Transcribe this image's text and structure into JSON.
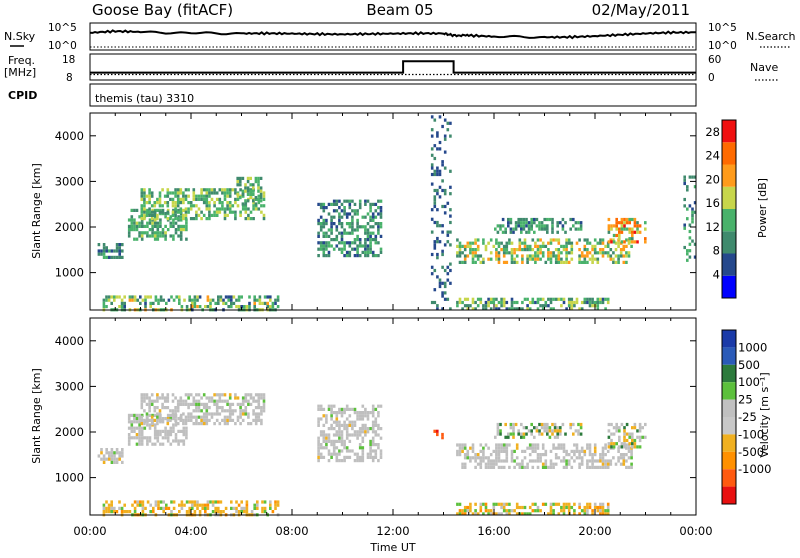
{
  "header": {
    "station": "Goose Bay (fitACF)",
    "beam": "Beam 05",
    "date": "02/May/2011"
  },
  "noise_panel": {
    "left_label": "N.Sky",
    "right_label": "N.Search",
    "ticks": [
      "10^5",
      "10^0"
    ],
    "right_ticks": [
      "10^5",
      "10^0"
    ]
  },
  "freq_panel": {
    "left_label_1": "Freq.",
    "left_label_2": "[MHz]",
    "right_label": "Nave",
    "left_ticks": [
      "18",
      "8"
    ],
    "right_ticks": [
      "60",
      "0"
    ]
  },
  "cpid_panel": {
    "label": "CPID",
    "program": "themis (tau) 3310"
  },
  "colors": {
    "power": [
      "#0000ff",
      "#25488c",
      "#3f8a6d",
      "#49b26b",
      "#c7d64b",
      "#ff9b1b",
      "#ff6a00",
      "#f01010"
    ],
    "velocity": [
      "#1a3aa8",
      "#2a5ab8",
      "#2c7a3c",
      "#5cc03c",
      "#c0c0c0",
      "#c8c8c8",
      "#f0b020",
      "#ff9000",
      "#ff5a10",
      "#e81010"
    ],
    "ground_scatter": "#bfbfbf"
  },
  "chart_data": [
    {
      "type": "line",
      "name": "noise-panel",
      "xlabel": "",
      "ylabel": "",
      "log_y": true,
      "ylim": [
        1,
        100000
      ],
      "series": [
        {
          "name": "N.Sky",
          "style": "solid",
          "x": [
            0,
            1,
            2,
            4,
            6,
            7,
            8,
            9,
            10,
            11,
            12,
            13,
            14,
            14.4,
            15,
            16,
            18,
            19,
            20,
            21,
            22,
            23,
            24
          ],
          "y": [
            3000,
            8000,
            5000,
            2500,
            2000,
            2200,
            1800,
            1400,
            1200,
            1500,
            1800,
            2200,
            2000,
            600,
            600,
            300,
            200,
            220,
            400,
            900,
            2000,
            3500,
            4000
          ]
        },
        {
          "name": "N.Search",
          "style": "dotted",
          "x": [
            0,
            24
          ],
          "y": [
            1,
            1
          ]
        }
      ]
    },
    {
      "type": "line",
      "name": "frequency-panel",
      "ylim": [
        8,
        18
      ],
      "y2lim": [
        0,
        60
      ],
      "series": [
        {
          "name": "Freq.",
          "style": "solid",
          "x": [
            0,
            12.4,
            12.4,
            14.4,
            14.4,
            24
          ],
          "y": [
            10.3,
            10.3,
            16.3,
            16.3,
            10.3,
            10.3
          ]
        },
        {
          "name": "Nave",
          "style": "dotted",
          "x": [
            0,
            24
          ],
          "y": [
            10,
            10
          ]
        }
      ]
    },
    {
      "type": "heatmap",
      "name": "power",
      "xlabel": "",
      "ylabel": "Slant Range [km]",
      "xlim": [
        0,
        24
      ],
      "ylim": [
        180,
        4500
      ],
      "x_ticks": [
        "00:00",
        "04:00",
        "08:00",
        "12:00",
        "16:00",
        "20:00",
        "00:00"
      ],
      "y_ticks": [
        1000,
        2000,
        3000,
        4000
      ],
      "colorbar": {
        "label": "Power [dB]",
        "ticks": [
          4,
          8,
          12,
          16,
          20,
          24,
          28
        ],
        "range": [
          0,
          30
        ]
      },
      "regions": [
        {
          "t0": 0.3,
          "t1": 1.3,
          "r0": 1300,
          "r1": 1650,
          "v0": 6,
          "v1": 12
        },
        {
          "t0": 1.5,
          "t1": 3.8,
          "r0": 1700,
          "r1": 2400,
          "v0": 8,
          "v1": 16
        },
        {
          "t0": 2.0,
          "t1": 6.9,
          "r0": 2150,
          "r1": 2850,
          "v0": 8,
          "v1": 18
        },
        {
          "t0": 5.8,
          "t1": 6.8,
          "r0": 2500,
          "r1": 3100,
          "v0": 8,
          "v1": 16
        },
        {
          "t0": 9.0,
          "t1": 11.5,
          "r0": 1400,
          "r1": 2600,
          "v0": 6,
          "v1": 14
        },
        {
          "t0": 14.5,
          "t1": 21.5,
          "r0": 1250,
          "r1": 1750,
          "v0": 8,
          "v1": 22
        },
        {
          "t0": 16.0,
          "t1": 19.5,
          "r0": 1850,
          "r1": 2200,
          "v0": 6,
          "v1": 14
        },
        {
          "t0": 20.5,
          "t1": 22.0,
          "r0": 1700,
          "r1": 2200,
          "v0": 10,
          "v1": 28
        },
        {
          "t0": 23.5,
          "t1": 24.0,
          "r0": 1300,
          "r1": 3200,
          "v0": 6,
          "v1": 14
        },
        {
          "t0": 0.5,
          "t1": 7.5,
          "r0": 200,
          "r1": 500,
          "v0": 6,
          "v1": 20
        },
        {
          "t0": 14.5,
          "t1": 20.5,
          "r0": 200,
          "r1": 450,
          "v0": 6,
          "v1": 18
        },
        {
          "t0": 13.5,
          "t1": 14.3,
          "r0": 200,
          "r1": 4450,
          "v0": 4,
          "v1": 10
        }
      ]
    },
    {
      "type": "heatmap",
      "name": "velocity",
      "xlabel": "Time UT",
      "ylabel": "Slant Range [km]",
      "xlim": [
        0,
        24
      ],
      "ylim": [
        180,
        4500
      ],
      "x_ticks": [
        "00:00",
        "04:00",
        "08:00",
        "12:00",
        "16:00",
        "20:00",
        "00:00"
      ],
      "y_ticks": [
        1000,
        2000,
        3000,
        4000
      ],
      "colorbar": {
        "label": "Velocity [m s⁻¹]",
        "ticks": [
          "1000",
          "500",
          "100",
          "25",
          "-25",
          "-100",
          "-500",
          "-1000"
        ]
      },
      "regions": [
        {
          "t0": 0.3,
          "t1": 1.3,
          "r0": 1300,
          "r1": 1650,
          "kind": "ground"
        },
        {
          "t0": 1.5,
          "t1": 3.8,
          "r0": 1700,
          "r1": 2400,
          "kind": "ground"
        },
        {
          "t0": 2.0,
          "t1": 6.9,
          "r0": 2150,
          "r1": 2850,
          "kind": "ground"
        },
        {
          "t0": 9.0,
          "t1": 11.5,
          "r0": 1400,
          "r1": 2600,
          "kind": "ground"
        },
        {
          "t0": 14.5,
          "t1": 21.5,
          "r0": 1250,
          "r1": 1750,
          "kind": "ground"
        },
        {
          "t0": 16.0,
          "t1": 19.5,
          "r0": 1850,
          "r1": 2200,
          "kind": "mixed"
        },
        {
          "t0": 20.5,
          "t1": 22.0,
          "r0": 1700,
          "r1": 2200,
          "kind": "mixed"
        },
        {
          "t0": 0.5,
          "t1": 7.5,
          "r0": 200,
          "r1": 500,
          "kind": "negative"
        },
        {
          "t0": 14.5,
          "t1": 20.5,
          "r0": 200,
          "r1": 450,
          "kind": "negative"
        },
        {
          "t0": 13.6,
          "t1": 14.0,
          "r0": 1850,
          "r1": 2050,
          "kind": "strong-negative"
        }
      ]
    }
  ]
}
